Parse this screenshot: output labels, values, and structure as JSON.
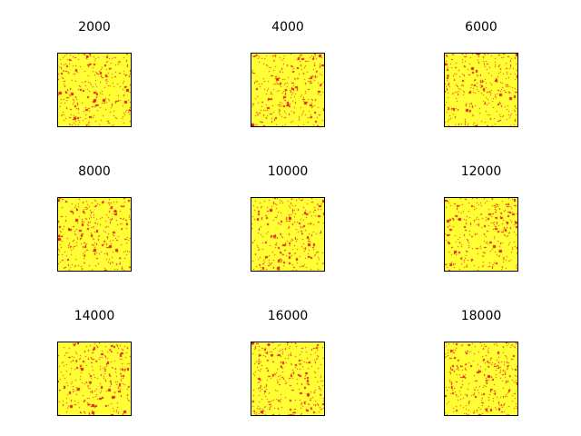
{
  "chart_data": {
    "type": "heatmap",
    "layout": "3x3 grid of small multiples",
    "colormap": {
      "background": "#ffff33",
      "occupied": "#e41a1c"
    },
    "grid_size": 80,
    "axes_visible": false,
    "panels": [
      {
        "title": "2000",
        "red_fraction": 0.08
      },
      {
        "title": "4000",
        "red_fraction": 0.08
      },
      {
        "title": "6000",
        "red_fraction": 0.08
      },
      {
        "title": "8000",
        "red_fraction": 0.08
      },
      {
        "title": "10000",
        "red_fraction": 0.08
      },
      {
        "title": "12000",
        "red_fraction": 0.08
      },
      {
        "title": "14000",
        "red_fraction": 0.08
      },
      {
        "title": "16000",
        "red_fraction": 0.08
      },
      {
        "title": "18000",
        "red_fraction": 0.08
      }
    ]
  }
}
